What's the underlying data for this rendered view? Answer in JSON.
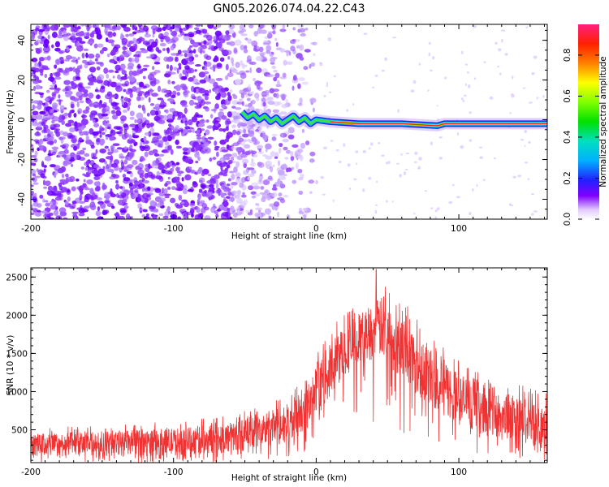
{
  "figure": {
    "title": "GN05.2026.074.04.22.C43"
  },
  "chart_data": [
    {
      "type": "heatmap",
      "name": "spectrogram",
      "xlabel": "Height of straight line (km)",
      "ylabel": "Frequency (Hz)",
      "xlim": [
        -200,
        162
      ],
      "ylim": [
        -50,
        48
      ],
      "xticks": [
        -200,
        -100,
        0,
        100
      ],
      "xtick_labels": [
        "-200",
        "-100",
        "0",
        "100"
      ],
      "yticks": [
        -40,
        -20,
        0,
        20,
        40
      ],
      "ytick_labels": [
        "-40",
        "-20",
        "0",
        "20",
        "40"
      ],
      "colorbar": {
        "label": "Normalized spectral amplitude",
        "range": [
          0,
          0.95
        ],
        "ticks": [
          0,
          0.2,
          0.4,
          0.6,
          0.8
        ],
        "tick_labels": [
          "0.0",
          "0.2",
          "0.4",
          "0.6",
          "0.8"
        ]
      },
      "signal_track": {
        "x": [
          -52,
          -48,
          -44,
          -40,
          -36,
          -32,
          -28,
          -24,
          -20,
          -16,
          -12,
          -8,
          -4,
          0,
          10,
          30,
          60,
          85,
          90,
          120,
          162
        ],
        "y": [
          4,
          1,
          3,
          0,
          2,
          -1,
          1,
          -2,
          0,
          2,
          -1,
          1,
          -2,
          0,
          -1,
          -2,
          -2,
          -3,
          -2,
          -2,
          -2
        ],
        "peak_amplitude": 0.9
      },
      "noise_region": {
        "x_from": -200,
        "x_to": -15,
        "dense_until": -45
      }
    },
    {
      "type": "line",
      "name": "snr",
      "xlabel": "Height of straight line (km)",
      "ylabel": "SNR (10 * v/v)",
      "xlim": [
        -200,
        162
      ],
      "ylim": [
        70,
        2620
      ],
      "xticks": [
        -200,
        -100,
        0,
        100
      ],
      "xtick_labels": [
        "-200",
        "-100",
        "0",
        "100"
      ],
      "yticks": [
        500,
        1000,
        1500,
        2000,
        2500
      ],
      "ytick_labels": [
        "500",
        "1000",
        "1500",
        "2000",
        "2500"
      ],
      "color": "#f03232",
      "envelope": {
        "x": [
          -200,
          -150,
          -100,
          -60,
          -40,
          -20,
          -5,
          5,
          20,
          35,
          45,
          60,
          80,
          100,
          130,
          162
        ],
        "base": [
          150,
          150,
          160,
          200,
          250,
          320,
          450,
          800,
          1200,
          1400,
          1450,
          1150,
          800,
          550,
          350,
          250
        ],
        "upper": [
          450,
          480,
          520,
          600,
          700,
          850,
          1100,
          1500,
          1900,
          2100,
          2250,
          2000,
          1600,
          1250,
          1000,
          850
        ]
      },
      "peak": {
        "x": 42,
        "y": 2600
      }
    }
  ]
}
